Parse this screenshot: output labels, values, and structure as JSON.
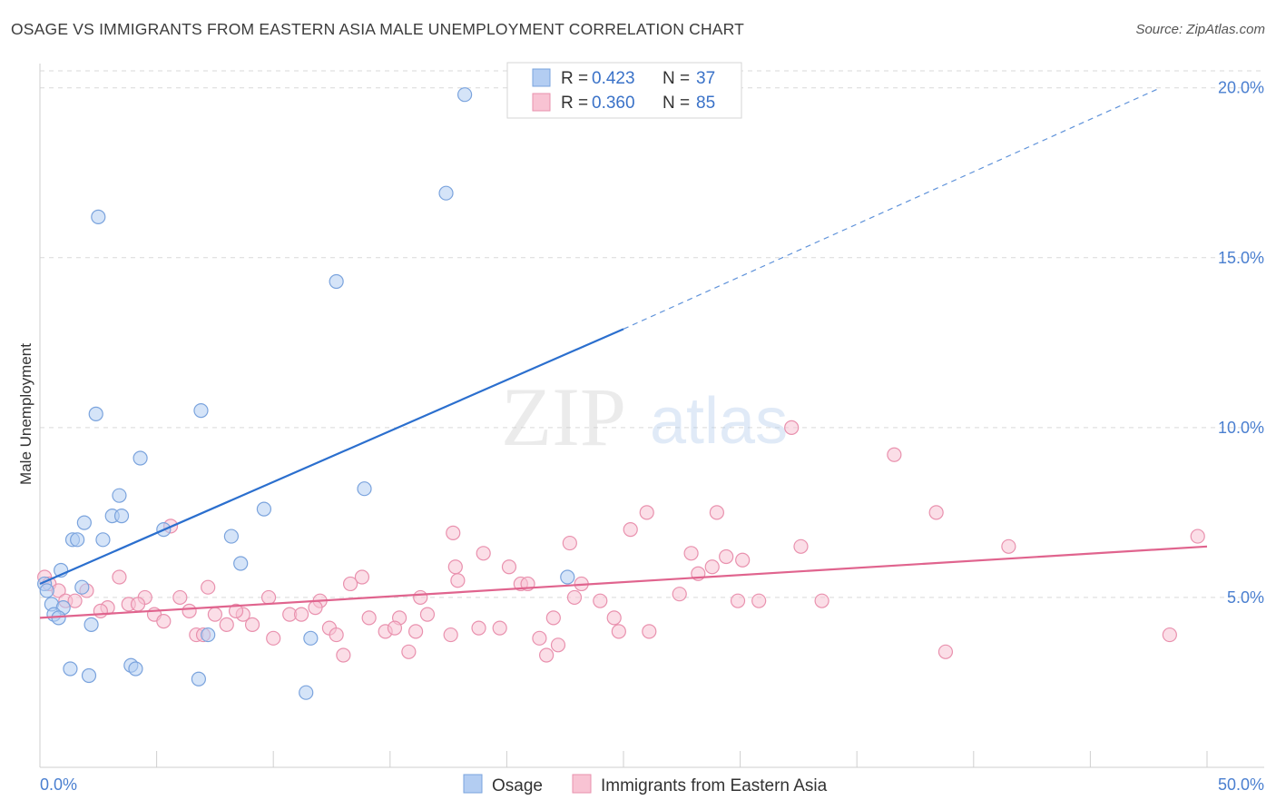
{
  "title": "OSAGE VS IMMIGRANTS FROM EASTERN ASIA MALE UNEMPLOYMENT CORRELATION CHART",
  "source": "Source: ZipAtlas.com",
  "watermark": {
    "zip": "ZIP",
    "atlas": "atlas"
  },
  "colors": {
    "osage_fill": "#b3cdf2",
    "osage_stroke": "#7aa3dd",
    "osage_line": "#2b6fce",
    "imm_fill": "#f8c3d3",
    "imm_stroke": "#e991ae",
    "imm_line": "#e0648e",
    "tick": "#4a7fd0",
    "grid": "#d9d9d9"
  },
  "legend": {
    "rows": [
      {
        "r_label": "R =",
        "r_value": "0.423",
        "n_label": "N =",
        "n_value": "37"
      },
      {
        "r_label": "R =",
        "r_value": "0.360",
        "n_label": "N =",
        "n_value": "85"
      }
    ]
  },
  "bottom_legend": [
    "Osage",
    "Immigrants from Eastern Asia"
  ],
  "chart_data": {
    "type": "scatter",
    "xlabel": "",
    "ylabel": "Male Unemployment",
    "xlim": [
      0,
      50
    ],
    "ylim": [
      0,
      20.5
    ],
    "x_tick_labels": [
      "0.0%",
      "50.0%"
    ],
    "y_ticks": [
      5,
      10,
      15,
      20
    ],
    "y_tick_labels": [
      "5.0%",
      "10.0%",
      "15.0%",
      "20.0%"
    ],
    "series": [
      {
        "name": "Osage",
        "r": 0.423,
        "n": 37,
        "trend": {
          "x0": 0,
          "y0": 5.4,
          "x1": 25,
          "y1": 12.9,
          "dash_to_x": 48,
          "dash_to_y": 20.0
        },
        "points": [
          [
            18.2,
            19.8
          ],
          [
            17.4,
            16.9
          ],
          [
            2.5,
            16.2
          ],
          [
            12.7,
            14.3
          ],
          [
            2.4,
            10.4
          ],
          [
            6.9,
            10.5
          ],
          [
            4.3,
            9.1
          ],
          [
            13.9,
            8.2
          ],
          [
            3.4,
            8.0
          ],
          [
            3.1,
            7.4
          ],
          [
            3.5,
            7.4
          ],
          [
            1.9,
            7.2
          ],
          [
            9.6,
            7.6
          ],
          [
            5.3,
            7.0
          ],
          [
            1.4,
            6.7
          ],
          [
            1.6,
            6.7
          ],
          [
            2.7,
            6.7
          ],
          [
            8.2,
            6.8
          ],
          [
            8.6,
            6.0
          ],
          [
            0.9,
            5.8
          ],
          [
            0.2,
            5.4
          ],
          [
            0.3,
            5.2
          ],
          [
            1.8,
            5.3
          ],
          [
            22.6,
            5.6
          ],
          [
            0.5,
            4.8
          ],
          [
            1.0,
            4.7
          ],
          [
            0.6,
            4.5
          ],
          [
            0.8,
            4.4
          ],
          [
            2.2,
            4.2
          ],
          [
            7.2,
            3.9
          ],
          [
            11.6,
            3.8
          ],
          [
            1.3,
            2.9
          ],
          [
            2.1,
            2.7
          ],
          [
            3.9,
            3.0
          ],
          [
            4.1,
            2.9
          ],
          [
            6.8,
            2.6
          ],
          [
            11.4,
            2.2
          ]
        ]
      },
      {
        "name": "Immigrants from Eastern Asia",
        "r": 0.36,
        "n": 85,
        "trend": {
          "x0": 0,
          "y0": 4.4,
          "x1": 50,
          "y1": 6.5
        },
        "points": [
          [
            32.2,
            10.0
          ],
          [
            36.6,
            9.2
          ],
          [
            26.0,
            7.5
          ],
          [
            29.0,
            7.5
          ],
          [
            38.4,
            7.5
          ],
          [
            25.3,
            7.0
          ],
          [
            5.6,
            7.1
          ],
          [
            17.7,
            6.9
          ],
          [
            22.7,
            6.6
          ],
          [
            32.6,
            6.5
          ],
          [
            41.5,
            6.5
          ],
          [
            49.6,
            6.8
          ],
          [
            19.0,
            6.3
          ],
          [
            27.9,
            6.3
          ],
          [
            29.4,
            6.2
          ],
          [
            30.1,
            6.1
          ],
          [
            20.1,
            5.9
          ],
          [
            17.8,
            5.9
          ],
          [
            28.2,
            5.7
          ],
          [
            28.8,
            5.9
          ],
          [
            3.4,
            5.6
          ],
          [
            13.8,
            5.6
          ],
          [
            13.3,
            5.4
          ],
          [
            17.9,
            5.5
          ],
          [
            20.6,
            5.4
          ],
          [
            20.9,
            5.4
          ],
          [
            23.2,
            5.4
          ],
          [
            7.2,
            5.3
          ],
          [
            0.2,
            5.6
          ],
          [
            0.4,
            5.4
          ],
          [
            0.8,
            5.2
          ],
          [
            2.0,
            5.2
          ],
          [
            1.1,
            4.9
          ],
          [
            1.5,
            4.9
          ],
          [
            4.5,
            5.0
          ],
          [
            6.0,
            5.0
          ],
          [
            9.8,
            5.0
          ],
          [
            16.3,
            5.0
          ],
          [
            22.9,
            5.0
          ],
          [
            24.0,
            4.9
          ],
          [
            27.4,
            5.1
          ],
          [
            29.9,
            4.9
          ],
          [
            30.8,
            4.9
          ],
          [
            33.5,
            4.9
          ],
          [
            12.0,
            4.9
          ],
          [
            11.8,
            4.7
          ],
          [
            3.8,
            4.8
          ],
          [
            4.2,
            4.8
          ],
          [
            2.9,
            4.7
          ],
          [
            2.6,
            4.6
          ],
          [
            6.4,
            4.6
          ],
          [
            7.5,
            4.5
          ],
          [
            8.7,
            4.5
          ],
          [
            8.4,
            4.6
          ],
          [
            10.7,
            4.5
          ],
          [
            11.2,
            4.5
          ],
          [
            14.1,
            4.4
          ],
          [
            15.4,
            4.4
          ],
          [
            16.6,
            4.5
          ],
          [
            22.0,
            4.4
          ],
          [
            24.6,
            4.4
          ],
          [
            4.9,
            4.5
          ],
          [
            5.3,
            4.3
          ],
          [
            8.0,
            4.2
          ],
          [
            9.1,
            4.2
          ],
          [
            12.4,
            4.1
          ],
          [
            14.8,
            4.0
          ],
          [
            15.2,
            4.1
          ],
          [
            18.8,
            4.1
          ],
          [
            19.7,
            4.1
          ],
          [
            16.1,
            4.0
          ],
          [
            17.6,
            3.9
          ],
          [
            24.8,
            4.0
          ],
          [
            26.1,
            4.0
          ],
          [
            6.7,
            3.9
          ],
          [
            7.0,
            3.9
          ],
          [
            12.7,
            3.9
          ],
          [
            10.0,
            3.8
          ],
          [
            21.4,
            3.8
          ],
          [
            22.2,
            3.6
          ],
          [
            21.7,
            3.3
          ],
          [
            13.0,
            3.3
          ],
          [
            15.8,
            3.4
          ],
          [
            38.8,
            3.4
          ],
          [
            48.4,
            3.9
          ]
        ]
      }
    ]
  }
}
